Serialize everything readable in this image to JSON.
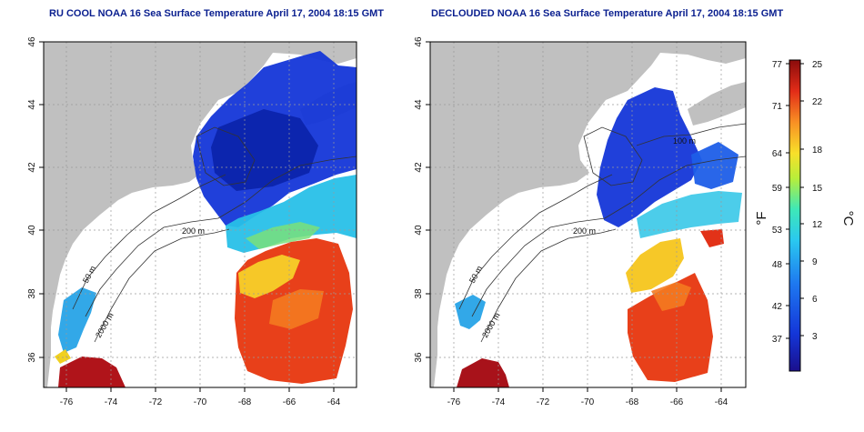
{
  "titles": {
    "left": "RU COOL NOAA 16 Sea Surface Temperature April 17, 2004 18:15 GMT",
    "right": "DECLOUDED NOAA 16 Sea Surface Temperature April 17, 2004 18:15 GMT"
  },
  "axes": {
    "x_ticks": [
      "-76",
      "-74",
      "-72",
      "-70",
      "-68",
      "-66",
      "-64"
    ],
    "y_ticks": [
      "36",
      "38",
      "40",
      "42",
      "44",
      "46"
    ]
  },
  "contour_labels": {
    "left": [
      "200 m",
      "50 m",
      "2000 m"
    ],
    "right": [
      "200 m",
      "100 m",
      "50 m",
      "2000 m"
    ]
  },
  "colorbar": {
    "f_unit": "°F",
    "c_unit": "°C",
    "f_ticks": [
      "77",
      "71",
      "64",
      "59",
      "53",
      "48",
      "42",
      "37"
    ],
    "c_ticks": [
      "25",
      "22",
      "18",
      "15",
      "12",
      "9",
      "6",
      "3"
    ]
  },
  "colors": {
    "land": "#c0c0c0",
    "cold": "#0a2bc8",
    "warm": "#d4281c",
    "title": "#0a1f8f"
  }
}
